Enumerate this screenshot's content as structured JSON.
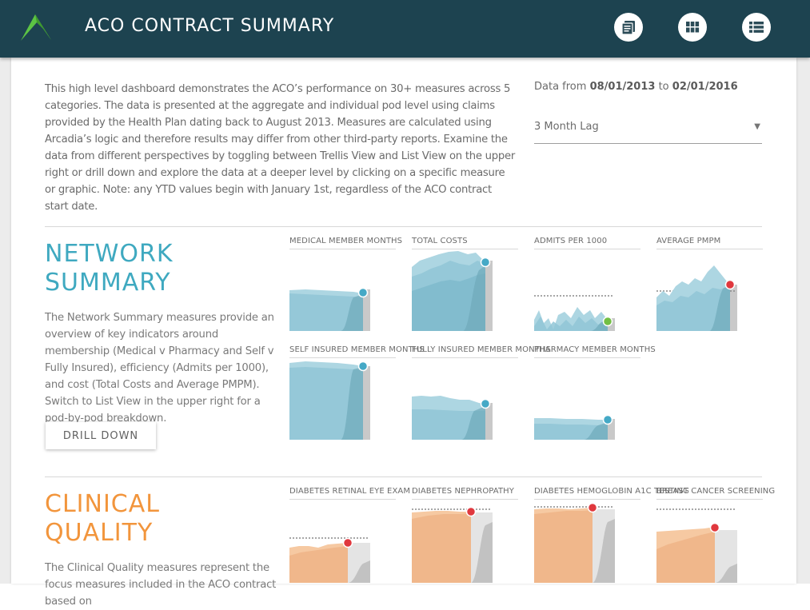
{
  "header": {
    "title": "ACO CONTRACT SUMMARY",
    "icons": [
      "report-icon",
      "trellis-view-icon",
      "list-view-icon"
    ]
  },
  "intro": {
    "text": "This high level dashboard demonstrates the ACO’s performance on 30+ measures across 5 categories. The data is presented at the aggregate and individual pod level using claims provided by the Health Plan dating back to August 2013. Measures are calculated using Arcadia’s logic and therefore results may differ from other third-party reports. Examine the data from different perspectives by toggling between Trellis View and List View on the upper right or drill down and explore the data at a deeper level by clicking on a specific measure or graphic. Note: any YTD values begin with January 1st, regardless of the ACO contract start date."
  },
  "date_range": {
    "prefix": "Data from",
    "start": "08/01/2013",
    "joiner": "to",
    "end": "02/01/2016"
  },
  "lag_select": {
    "value": "3 Month Lag"
  },
  "network": {
    "title_line1": "NETWORK",
    "title_line2": "SUMMARY",
    "description": "The Network Summary measures provide an overview of key indicators around membership (Medical v Pharmacy and Self v Fully Insured), efficiency (Admits per 1000), and cost (Total Costs and Average PMPM). Switch to List View in the upper right for a pod-by-pod breakdown.",
    "drill_label": "DRILL DOWN",
    "tiles": [
      {
        "label": "MEDICAL MEMBER MONTHS"
      },
      {
        "label": "TOTAL COSTS"
      },
      {
        "label": "ADMITS PER 1000"
      },
      {
        "label": "AVERAGE PMPM"
      },
      {
        "label": "SELF INSURED MEMBER MONTHS"
      },
      {
        "label": "FULLY INSURED MEMBER MONTHS"
      },
      {
        "label": "PHARMACY MEMBER MONTHS"
      }
    ]
  },
  "clinical": {
    "title_line1": "CLINICAL",
    "title_line2": "QUALITY",
    "description": "The Clinical Quality measures represent the focus measures included in the ACO contract based on",
    "tiles": [
      {
        "label": "DIABETES RETINAL EYE EXAM"
      },
      {
        "label": "DIABETES NEPHROPATHY"
      },
      {
        "label": "DIABETES HEMOGLOBIN A1C TESTING"
      },
      {
        "label": "BREAST CANCER SCREENING"
      }
    ]
  },
  "colors": {
    "header_bg": "#1d4350",
    "logo_green": "#5cc444",
    "network_accent": "#3fa9c0",
    "clinical_accent": "#f2953c",
    "status_blue": "#45a9c6",
    "status_red": "#e0383e",
    "status_green": "#72bf44"
  }
}
